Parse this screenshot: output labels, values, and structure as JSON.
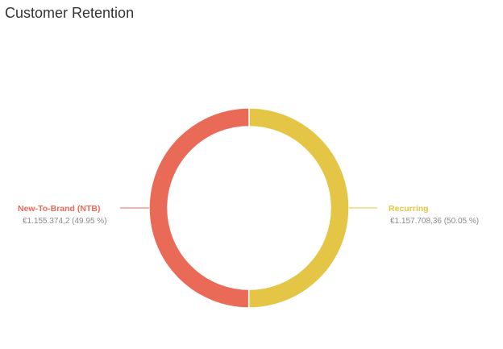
{
  "header": {
    "title": "Customer Retention"
  },
  "colors": {
    "ntb": "#ea6a58",
    "recurring": "#e5c545",
    "label_value": "#8a8a8a"
  },
  "chart_data": {
    "type": "pie",
    "variant": "donut",
    "title": "Customer Retention",
    "slices": [
      {
        "name": "New-To-Brand (NTB)",
        "value": 1155374.2,
        "value_label": "€1.155.374,2 (49.95 %)",
        "percent": 49.95,
        "color": "#ea6a58",
        "side": "left"
      },
      {
        "name": "Recurring",
        "value": 1157708.36,
        "value_label": "€1.157.708,36 (50.05 %)",
        "percent": 50.05,
        "color": "#e5c545",
        "side": "right"
      }
    ],
    "legend": "none"
  }
}
